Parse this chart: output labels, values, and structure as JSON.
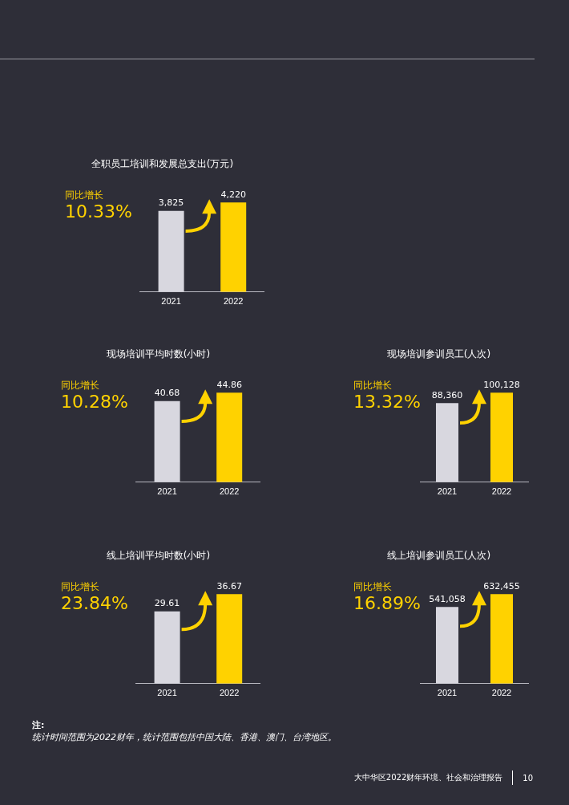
{
  "chart_data": [
    {
      "type": "bar",
      "title": "全职员工培训和发展总支出(万元)",
      "categories": [
        "2021",
        "2022"
      ],
      "values": [
        3825,
        4220
      ],
      "colors": [
        "#d8d7df",
        "#ffd200"
      ],
      "data_labels": true,
      "value_labels": [
        "3,825",
        "4,220"
      ],
      "annotations": [
        "同比增长",
        "10.33%"
      ]
    },
    {
      "type": "bar",
      "title": "现场培训平均时数(小时)",
      "categories": [
        "2021",
        "2022"
      ],
      "values": [
        40.68,
        44.86
      ],
      "colors": [
        "#d8d7df",
        "#ffd200"
      ],
      "data_labels": true,
      "value_labels": [
        "40.68",
        "44.86"
      ],
      "annotations": [
        "同比增长",
        "10.28%"
      ]
    },
    {
      "type": "bar",
      "title": "现场培训参训员工(人次)",
      "categories": [
        "2021",
        "2022"
      ],
      "values": [
        88360,
        100128
      ],
      "colors": [
        "#d8d7df",
        "#ffd200"
      ],
      "data_labels": true,
      "value_labels": [
        "88,360",
        "100,128"
      ],
      "annotations": [
        "同比增长",
        "13.32%"
      ]
    },
    {
      "type": "bar",
      "title": "线上培训平均时数(小时)",
      "categories": [
        "2021",
        "2022"
      ],
      "values": [
        29.61,
        36.67
      ],
      "colors": [
        "#d8d7df",
        "#ffd200"
      ],
      "data_labels": true,
      "value_labels": [
        "29.61",
        "36.67"
      ],
      "annotations": [
        "同比增长",
        "23.84%"
      ]
    },
    {
      "type": "bar",
      "title": "线上培训参训员工(人次)",
      "categories": [
        "2021",
        "2022"
      ],
      "values": [
        541058,
        632455
      ],
      "colors": [
        "#d8d7df",
        "#ffd200"
      ],
      "data_labels": true,
      "value_labels": [
        "541,058",
        "632,455"
      ],
      "annotations": [
        "同比增长",
        "16.89%"
      ]
    },
    {
      "type": "other",
      "annotations": [
        "注:",
        "统计时间范围为2022财年，统计范围包括中国大陆、香港、澳门、台湾地区。",
        "大中华区2022财年环境、社会和治理报告",
        "10"
      ]
    }
  ]
}
